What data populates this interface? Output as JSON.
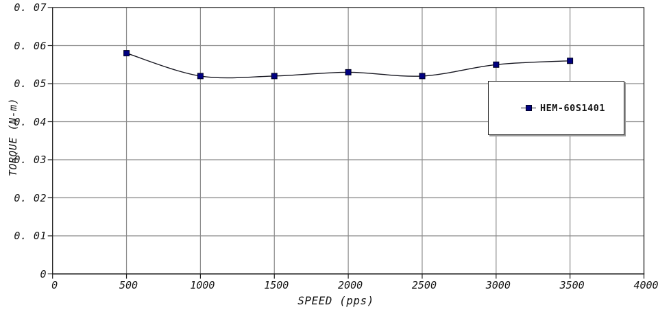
{
  "chart_data": {
    "type": "line",
    "title": "",
    "xlabel": "SPEED (pps)",
    "ylabel": "TORQUE (N-m)",
    "xlim": [
      0,
      4000
    ],
    "ylim": [
      0,
      0.07
    ],
    "grid": true,
    "legend_position": "inside-right",
    "x_ticks": [
      {
        "value": 0,
        "label": "0"
      },
      {
        "value": 500,
        "label": "500"
      },
      {
        "value": 1000,
        "label": "1000"
      },
      {
        "value": 1500,
        "label": "1500"
      },
      {
        "value": 2000,
        "label": "2000"
      },
      {
        "value": 2500,
        "label": "2500"
      },
      {
        "value": 3000,
        "label": "3000"
      },
      {
        "value": 3500,
        "label": "3500"
      },
      {
        "value": 4000,
        "label": "4000"
      }
    ],
    "y_ticks": [
      {
        "value": 0,
        "label": "0"
      },
      {
        "value": 0.01,
        "label": "0. 01"
      },
      {
        "value": 0.02,
        "label": "0. 02"
      },
      {
        "value": 0.03,
        "label": "0. 03"
      },
      {
        "value": 0.04,
        "label": "0. 04"
      },
      {
        "value": 0.05,
        "label": "0. 05"
      },
      {
        "value": 0.06,
        "label": "0. 06"
      },
      {
        "value": 0.07,
        "label": "0. 07"
      }
    ],
    "x": [
      500,
      1000,
      1500,
      2000,
      2500,
      3000,
      3500
    ],
    "series": [
      {
        "name": "HEM-60S1401",
        "values": [
          0.058,
          0.052,
          0.052,
          0.053,
          0.052,
          0.055,
          0.056
        ]
      }
    ],
    "colors": {
      "marker": "#000080",
      "marker_edge": "#000020",
      "line": "#15151f",
      "grid": "#8a8a8a",
      "frame": "#1c1c1c",
      "text": "#141414",
      "legend_shadow": "#9a9a9a"
    }
  }
}
